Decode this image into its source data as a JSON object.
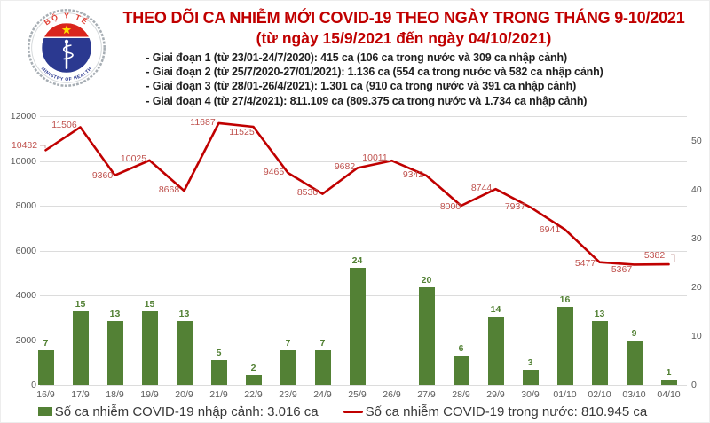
{
  "header": {
    "title": "THEO DÕI CA NHIỄM MỚI COVID-19 THEO NGÀY TRONG THÁNG 9-10/2021",
    "subtitle": "(từ ngày 15/9/2021 đến ngày 04/10/2021)",
    "bullets": [
      "- Giai đoạn 1 (từ 23/01-24/7/2020): 415 ca (106 ca trong nước và 309 ca nhập cảnh)",
      "- Giai đoạn 2 (từ 25/7/2020-27/01/2021): 1.136 ca (554 ca trong nước và 582 ca nhập cảnh)",
      "- Giai đoạn 3 (từ 28/01-26/4/2021): 1.301 ca (910 ca trong nước và 391 ca nhập cảnh)",
      "- Giai đoạn 4 (từ 27/4/2021): 811.109 ca (809.375 ca trong nước và 1.734 ca nhập cảnh)"
    ],
    "logo": {
      "top_text": "BỘ Y TẾ",
      "bottom_text": "MINISTRY OF HEALTH"
    }
  },
  "colors": {
    "title": "#C00000",
    "line": "#C00000",
    "line_label": "#BF514D",
    "bar": "#538135",
    "axis_text": "#595959",
    "grid": "#dcdcdc",
    "logo_blue": "#2B3990",
    "logo_red": "#DA251D",
    "logo_star": "#FFDE00"
  },
  "chart_data": {
    "type": "combo",
    "categories": [
      "16/9",
      "17/9",
      "18/9",
      "19/9",
      "20/9",
      "21/9",
      "22/9",
      "23/9",
      "24/9",
      "25/9",
      "26/9",
      "27/9",
      "28/9",
      "29/9",
      "30/9",
      "01/10",
      "02/10",
      "03/10",
      "04/10"
    ],
    "series": [
      {
        "name": "Số ca nhiễm COVID-19 nhập cảnh",
        "type": "bar",
        "axis": "right",
        "color": "#538135",
        "values": [
          7,
          15,
          13,
          15,
          13,
          5,
          2,
          7,
          7,
          24,
          null,
          20,
          6,
          14,
          3,
          16,
          13,
          9,
          1
        ]
      },
      {
        "name": "Số ca nhiễm COVID-19 trong nước",
        "type": "line",
        "axis": "left",
        "color": "#C00000",
        "values": [
          10482,
          11506,
          9360,
          10025,
          8668,
          11687,
          11525,
          9465,
          8530,
          9682,
          10011,
          9342,
          8000,
          8744,
          7937,
          6941,
          5477,
          5367,
          5382
        ]
      }
    ],
    "left_axis": {
      "min": 0,
      "max": 12000,
      "ticks": [
        0,
        2000,
        4000,
        6000,
        8000,
        10000,
        12000
      ]
    },
    "right_axis": {
      "min": 0,
      "max": 55,
      "ticks": [
        0,
        10,
        20,
        30,
        40,
        50
      ]
    },
    "grid": true,
    "legend_position": "bottom",
    "legend": [
      {
        "swatch": "bar",
        "label": "Số ca nhiễm COVID-19 nhập cảnh: 3.016 ca"
      },
      {
        "swatch": "line",
        "label": "Số ca nhiễm COVID-19 trong nước: 810.945 ca"
      }
    ]
  }
}
